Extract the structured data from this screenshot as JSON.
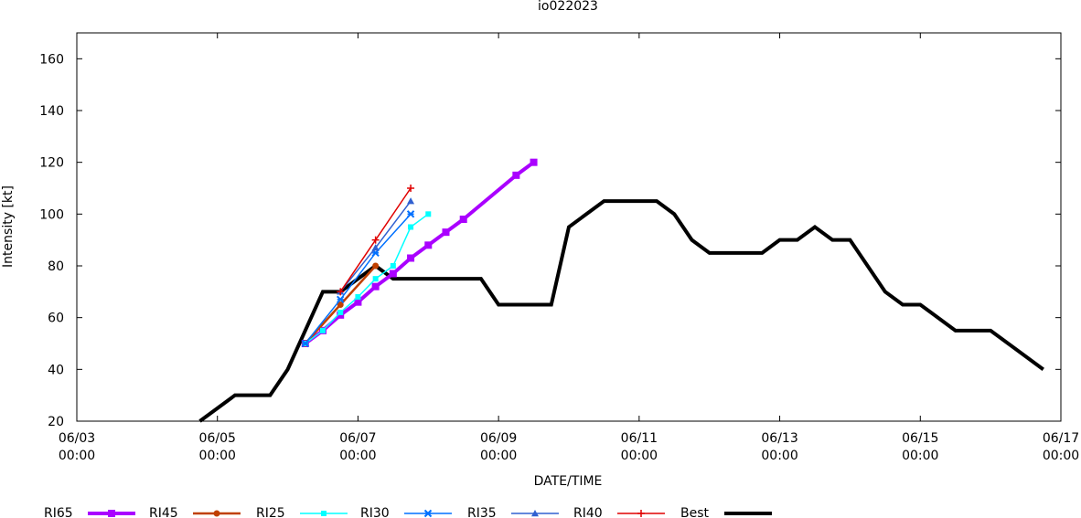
{
  "chart_data": {
    "type": "line",
    "title": "io022023",
    "xlabel": "DATE/TIME",
    "ylabel": "Intensity [kt]",
    "x_range": [
      "06/03 00:00",
      "06/17 00:00"
    ],
    "ylim": [
      20,
      170
    ],
    "grid": false,
    "legend_position": "bottom",
    "x_ticks": [
      {
        "x": "06/03 00:00",
        "date": "06/03",
        "time": "00:00"
      },
      {
        "x": "06/05 00:00",
        "date": "06/05",
        "time": "00:00"
      },
      {
        "x": "06/07 00:00",
        "date": "06/07",
        "time": "00:00"
      },
      {
        "x": "06/09 00:00",
        "date": "06/09",
        "time": "00:00"
      },
      {
        "x": "06/11 00:00",
        "date": "06/11",
        "time": "00:00"
      },
      {
        "x": "06/13 00:00",
        "date": "06/13",
        "time": "00:00"
      },
      {
        "x": "06/15 00:00",
        "date": "06/15",
        "time": "00:00"
      },
      {
        "x": "06/17 00:00",
        "date": "06/17",
        "time": "00:00"
      }
    ],
    "y_ticks": [
      20,
      40,
      60,
      80,
      100,
      120,
      140,
      160
    ],
    "series": [
      {
        "name": "RI65",
        "color": "#aa00ff",
        "marker": "square-filled",
        "points": [
          [
            "06/06 06:00",
            50
          ],
          [
            "06/06 12:00",
            55
          ],
          [
            "06/06 18:00",
            61
          ],
          [
            "06/07 00:00",
            66
          ],
          [
            "06/07 06:00",
            72
          ],
          [
            "06/07 12:00",
            77
          ],
          [
            "06/07 18:00",
            83
          ],
          [
            "06/08 00:00",
            88
          ],
          [
            "06/08 06:00",
            93
          ],
          [
            "06/08 12:00",
            98
          ],
          [
            "06/09 06:00",
            115
          ],
          [
            "06/09 12:00",
            120
          ]
        ]
      },
      {
        "name": "RI45",
        "color": "#c04000",
        "marker": "circle-filled",
        "points": [
          [
            "06/06 06:00",
            50
          ],
          [
            "06/06 18:00",
            65
          ],
          [
            "06/07 06:00",
            80
          ]
        ]
      },
      {
        "name": "RI25",
        "color": "#00ffff",
        "marker": "square-filled-small",
        "points": [
          [
            "06/06 06:00",
            50
          ],
          [
            "06/06 12:00",
            55
          ],
          [
            "06/06 18:00",
            62
          ],
          [
            "06/07 00:00",
            68
          ],
          [
            "06/07 06:00",
            75
          ],
          [
            "06/07 12:00",
            80
          ],
          [
            "06/07 18:00",
            95
          ],
          [
            "06/08 00:00",
            100
          ]
        ]
      },
      {
        "name": "RI30",
        "color": "#0070ff",
        "marker": "star",
        "points": [
          [
            "06/06 06:00",
            50
          ],
          [
            "06/06 18:00",
            67
          ],
          [
            "06/07 06:00",
            85
          ],
          [
            "06/07 18:00",
            100
          ]
        ]
      },
      {
        "name": "RI35",
        "color": "#3060d0",
        "marker": "triangle",
        "points": [
          [
            "06/06 18:00",
            70
          ],
          [
            "06/07 06:00",
            87
          ],
          [
            "06/07 18:00",
            105
          ]
        ]
      },
      {
        "name": "RI40",
        "color": "#e00000",
        "marker": "plus",
        "points": [
          [
            "06/06 18:00",
            70
          ],
          [
            "06/07 06:00",
            90
          ],
          [
            "06/07 18:00",
            110
          ]
        ]
      },
      {
        "name": "Best",
        "color": "#000000",
        "marker": "none",
        "points": [
          [
            "06/04 18:00",
            20
          ],
          [
            "06/05 00:00",
            25
          ],
          [
            "06/05 06:00",
            30
          ],
          [
            "06/05 18:00",
            30
          ],
          [
            "06/06 00:00",
            40
          ],
          [
            "06/06 12:00",
            70
          ],
          [
            "06/06 18:00",
            70
          ],
          [
            "06/07 06:00",
            80
          ],
          [
            "06/07 12:00",
            75
          ],
          [
            "06/08 18:00",
            75
          ],
          [
            "06/09 00:00",
            65
          ],
          [
            "06/09 18:00",
            65
          ],
          [
            "06/10 00:00",
            95
          ],
          [
            "06/10 12:00",
            105
          ],
          [
            "06/11 06:00",
            105
          ],
          [
            "06/11 12:00",
            100
          ],
          [
            "06/11 18:00",
            90
          ],
          [
            "06/12 00:00",
            85
          ],
          [
            "06/12 18:00",
            85
          ],
          [
            "06/13 00:00",
            90
          ],
          [
            "06/13 06:00",
            90
          ],
          [
            "06/13 12:00",
            95
          ],
          [
            "06/13 18:00",
            90
          ],
          [
            "06/14 00:00",
            90
          ],
          [
            "06/14 12:00",
            70
          ],
          [
            "06/14 18:00",
            65
          ],
          [
            "06/15 00:00",
            65
          ],
          [
            "06/15 12:00",
            55
          ],
          [
            "06/16 00:00",
            55
          ],
          [
            "06/16 18:00",
            40
          ]
        ]
      }
    ],
    "legend_order": [
      "RI65",
      "RI45",
      "RI25",
      "RI30",
      "RI35",
      "RI40",
      "Best"
    ]
  }
}
